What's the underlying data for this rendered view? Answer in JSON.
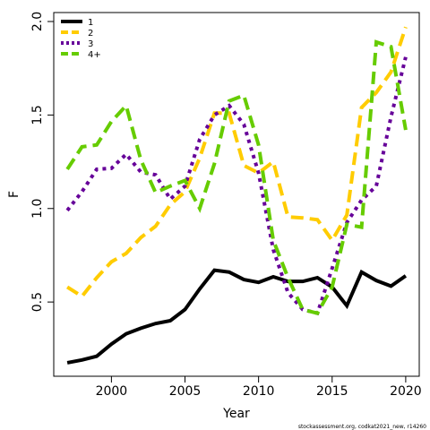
{
  "chart_data": {
    "type": "line",
    "x_label": "Year",
    "y_label": "F",
    "footnote": "stockassessment.org, codkat2021_new, r14260",
    "x": [
      1997,
      1998,
      1999,
      2000,
      2001,
      2002,
      2003,
      2004,
      2005,
      2006,
      2007,
      2008,
      2009,
      2010,
      2011,
      2012,
      2013,
      2014,
      2015,
      2016,
      2017,
      2018,
      2019,
      2020
    ],
    "series": [
      {
        "name": "1",
        "color": "#000000",
        "dash": "solid",
        "values": [
          0.175,
          0.19,
          0.21,
          0.275,
          0.33,
          0.36,
          0.385,
          0.4,
          0.46,
          0.57,
          0.67,
          0.66,
          0.62,
          0.605,
          0.635,
          0.61,
          0.61,
          0.63,
          0.58,
          0.48,
          0.66,
          0.615,
          0.585,
          0.64
        ]
      },
      {
        "name": "2",
        "color": "#ffcc00",
        "dash": "dashed",
        "values": [
          0.58,
          0.53,
          0.63,
          0.715,
          0.76,
          0.845,
          0.905,
          1.02,
          1.09,
          1.27,
          1.51,
          1.51,
          1.23,
          1.19,
          1.25,
          0.955,
          0.95,
          0.94,
          0.83,
          0.965,
          1.54,
          1.62,
          1.73,
          1.97
        ]
      },
      {
        "name": "3",
        "color": "#660099",
        "dash": "dotted",
        "values": [
          0.99,
          1.09,
          1.21,
          1.215,
          1.29,
          1.195,
          1.18,
          1.05,
          1.12,
          1.37,
          1.5,
          1.55,
          1.45,
          1.19,
          0.78,
          0.55,
          0.46,
          0.44,
          0.68,
          0.925,
          1.045,
          1.12,
          1.49,
          1.81
        ]
      },
      {
        "name": "4+",
        "color": "#66cc00",
        "dash": "dashed",
        "values": [
          1.21,
          1.33,
          1.34,
          1.465,
          1.55,
          1.26,
          1.085,
          1.12,
          1.15,
          1.0,
          1.24,
          1.575,
          1.605,
          1.34,
          0.83,
          0.63,
          0.46,
          0.44,
          0.58,
          0.915,
          0.9,
          1.89,
          1.865,
          1.42
        ]
      }
    ],
    "xlim": [
      1996.08,
      2020.92
    ],
    "xticks": [
      2000,
      2005,
      2010,
      2015,
      2020
    ],
    "ylim": [
      0.103,
      2.048
    ],
    "yticks": [
      {
        "value": 0.5,
        "label": "0.5"
      },
      {
        "value": 1.0,
        "label": "1.0"
      },
      {
        "value": 1.5,
        "label": "1.5"
      },
      {
        "value": 2.0,
        "label": "2.0"
      }
    ],
    "legend": "top-left",
    "grid": false
  }
}
